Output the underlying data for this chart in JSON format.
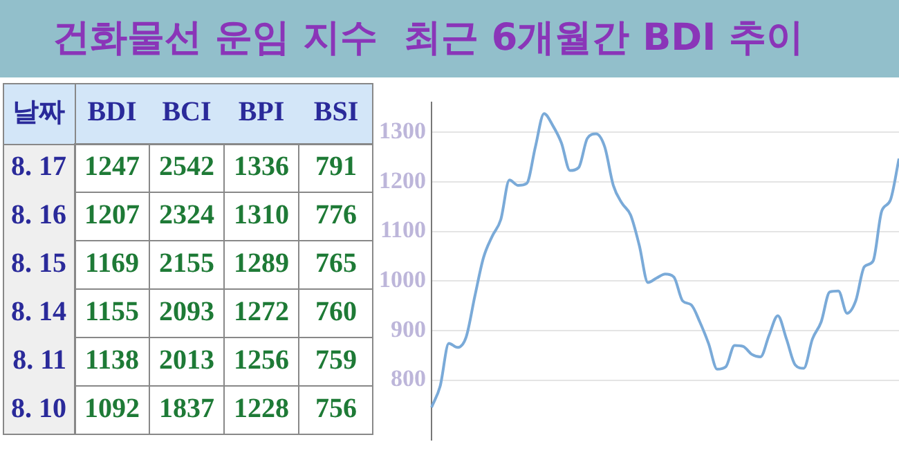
{
  "chart_data": [
    {
      "type": "heatmap",
      "title": "건화물선 운임 지수",
      "ylabel": "날짜",
      "categories": [
        "BDI",
        "BCI",
        "BPI",
        "BSI"
      ],
      "y_categories": [
        "8. 17",
        "8. 16",
        "8. 15",
        "8. 14",
        "8. 11",
        "8. 10"
      ],
      "cells": [
        [
          1247,
          2542,
          1336,
          791
        ],
        [
          1207,
          2324,
          1310,
          776
        ],
        [
          1169,
          2155,
          1289,
          765
        ],
        [
          1155,
          2093,
          1272,
          760
        ],
        [
          1138,
          2013,
          1256,
          759
        ],
        [
          1092,
          1837,
          1228,
          756
        ]
      ],
      "data_labels": true
    },
    {
      "type": "line",
      "title": "최근 6개월간 BDI 추이",
      "categories": [
        null,
        null,
        null,
        null,
        null,
        null,
        null,
        null,
        null,
        null,
        null,
        null,
        null,
        null,
        null,
        null,
        null,
        null,
        null,
        null,
        null,
        null,
        null,
        null,
        null,
        null,
        null,
        null,
        null,
        null,
        null,
        null,
        null,
        null,
        null,
        null,
        null,
        null,
        null,
        null,
        null,
        null,
        null,
        null,
        null,
        null,
        null,
        null,
        null,
        null,
        null,
        null,
        null,
        null,
        null
      ],
      "values": [
        745,
        788,
        874,
        866,
        887,
        969,
        1047,
        1090,
        1124,
        1204,
        1193,
        1197,
        1271,
        1338,
        1314,
        1279,
        1223,
        1229,
        1288,
        1297,
        1271,
        1193,
        1157,
        1133,
        1072,
        997,
        1006,
        1014,
        1008,
        960,
        952,
        917,
        874,
        822,
        827,
        870,
        868,
        852,
        847,
        891,
        930,
        883,
        831,
        824,
        883,
        917,
        978,
        980,
        935,
        960,
        1029,
        1040,
        1141,
        1163,
        1247
      ],
      "color": "#7aaad8",
      "ylim": [
        680,
        1360
      ],
      "yticks": [
        800,
        900,
        1000,
        1100,
        1200,
        1300
      ],
      "grid": "y",
      "tick_labels": "y"
    }
  ]
}
